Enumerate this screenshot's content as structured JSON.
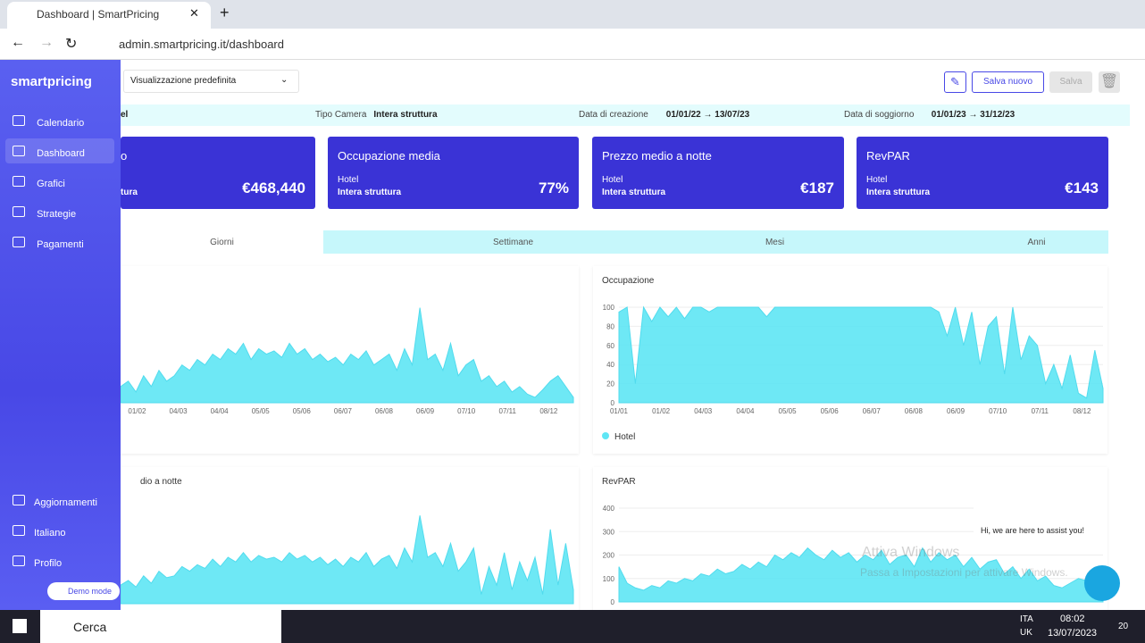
{
  "browser": {
    "tab_title": "Dashboard | SmartPricing",
    "url": "admin.smartpricing.it/dashboard"
  },
  "sidebar": {
    "logo": "smartpricing",
    "items": [
      "Calendario",
      "Dashboard",
      "Grafici",
      "Strategie",
      "Pagamenti"
    ],
    "bottom_items": [
      "Aggiornamenti",
      "Italiano",
      "Profilo"
    ],
    "demo": "Demo mode"
  },
  "toolbar": {
    "view": "Visualizzazione predefinita",
    "save_new": "Salva nuovo",
    "save": "Salva"
  },
  "filters": [
    {
      "label": "",
      "value": "el"
    },
    {
      "label": "Tipo Camera",
      "value": "Intera struttura"
    },
    {
      "label": "Data di creazione",
      "value": "01/01/22 → 13/07/23"
    },
    {
      "label": "Data di soggiorno",
      "value": "01/01/23 → 31/12/23"
    }
  ],
  "kpis": [
    {
      "title": "o",
      "line1": "",
      "line2": "tura",
      "value": "€468,440"
    },
    {
      "title": "Occupazione media",
      "line1": "Hotel",
      "line2": "Intera struttura",
      "value": "77%"
    },
    {
      "title": "Prezzo medio a notte",
      "line1": "Hotel",
      "line2": "Intera struttura",
      "value": "€187"
    },
    {
      "title": "RevPAR",
      "line1": "Hotel",
      "line2": "Intera struttura",
      "value": "€143"
    }
  ],
  "tabs": [
    "Giorni",
    "Settimane",
    "Mesi",
    "Anni"
  ],
  "charts": [
    {
      "type": "area",
      "title": "",
      "color": "#5fe6f5",
      "ylim": [
        0,
        100
      ],
      "yticks": [],
      "x_labels": [
        "01/02",
        "04/03",
        "04/04",
        "05/05",
        "05/06",
        "06/07",
        "06/08",
        "06/09",
        "07/10",
        "07/11",
        "08/12"
      ],
      "values": [
        15,
        20,
        10,
        25,
        15,
        30,
        20,
        25,
        35,
        30,
        40,
        35,
        45,
        40,
        50,
        45,
        55,
        40,
        50,
        45,
        48,
        42,
        55,
        45,
        50,
        40,
        45,
        38,
        42,
        35,
        45,
        40,
        48,
        35,
        40,
        45,
        30,
        50,
        35,
        88,
        40,
        45,
        30,
        55,
        25,
        35,
        40,
        20,
        25,
        15,
        20,
        10,
        15,
        8,
        5,
        12,
        20,
        25,
        15,
        5
      ]
    },
    {
      "type": "area",
      "title": "Occupazione",
      "color": "#5fe6f5",
      "ylim": [
        0,
        100
      ],
      "yticks": [
        0,
        20,
        40,
        60,
        80,
        100
      ],
      "x_labels": [
        "01/01",
        "01/02",
        "04/03",
        "04/04",
        "05/05",
        "05/06",
        "06/07",
        "06/08",
        "06/09",
        "07/10",
        "07/11",
        "08/12"
      ],
      "values": [
        95,
        100,
        20,
        100,
        85,
        100,
        90,
        100,
        88,
        100,
        100,
        95,
        100,
        100,
        100,
        100,
        100,
        100,
        90,
        100,
        100,
        100,
        100,
        100,
        100,
        100,
        100,
        100,
        100,
        100,
        100,
        100,
        100,
        100,
        100,
        100,
        100,
        100,
        100,
        95,
        70,
        100,
        60,
        95,
        40,
        80,
        90,
        30,
        100,
        45,
        70,
        60,
        20,
        40,
        15,
        50,
        10,
        5,
        55,
        15
      ],
      "legend": "Hotel"
    },
    {
      "type": "area",
      "title": "dio a notte",
      "color": "#5fe6f5",
      "ylim": [
        0,
        100
      ],
      "yticks": [],
      "x_labels": [],
      "values": [
        20,
        25,
        18,
        30,
        22,
        35,
        28,
        30,
        40,
        35,
        42,
        38,
        48,
        40,
        50,
        45,
        55,
        45,
        52,
        48,
        50,
        45,
        55,
        48,
        52,
        45,
        50,
        42,
        48,
        40,
        50,
        45,
        55,
        40,
        48,
        52,
        38,
        60,
        45,
        95,
        50,
        55,
        40,
        65,
        35,
        45,
        60,
        10,
        40,
        20,
        55,
        15,
        45,
        25,
        50,
        10,
        80,
        20,
        65,
        15
      ]
    },
    {
      "type": "area",
      "title": "RevPAR",
      "color": "#5fe6f5",
      "ylim": [
        0,
        400
      ],
      "yticks": [
        0,
        100,
        200,
        300,
        400
      ],
      "x_labels": [],
      "values": [
        150,
        80,
        60,
        50,
        70,
        60,
        90,
        80,
        100,
        90,
        120,
        110,
        140,
        120,
        130,
        160,
        140,
        170,
        150,
        200,
        180,
        210,
        190,
        230,
        200,
        180,
        220,
        190,
        210,
        170,
        200,
        180,
        220,
        160,
        190,
        200,
        150,
        230,
        170,
        210,
        180,
        200,
        150,
        190,
        140,
        170,
        180,
        120,
        150,
        100,
        140,
        90,
        110,
        70,
        60,
        80,
        100,
        90,
        50,
        40
      ]
    }
  ],
  "chat": "Hi, we are here to assist you!",
  "watermark": {
    "title": "Attiva Windows",
    "text": "Passa a Impostazioni per attivare Windows."
  },
  "taskbar": {
    "search": "Cerca",
    "lang1": "ITA",
    "lang2": "UK",
    "time": "08:02",
    "date": "13/07/2023",
    "notifications": "20"
  }
}
